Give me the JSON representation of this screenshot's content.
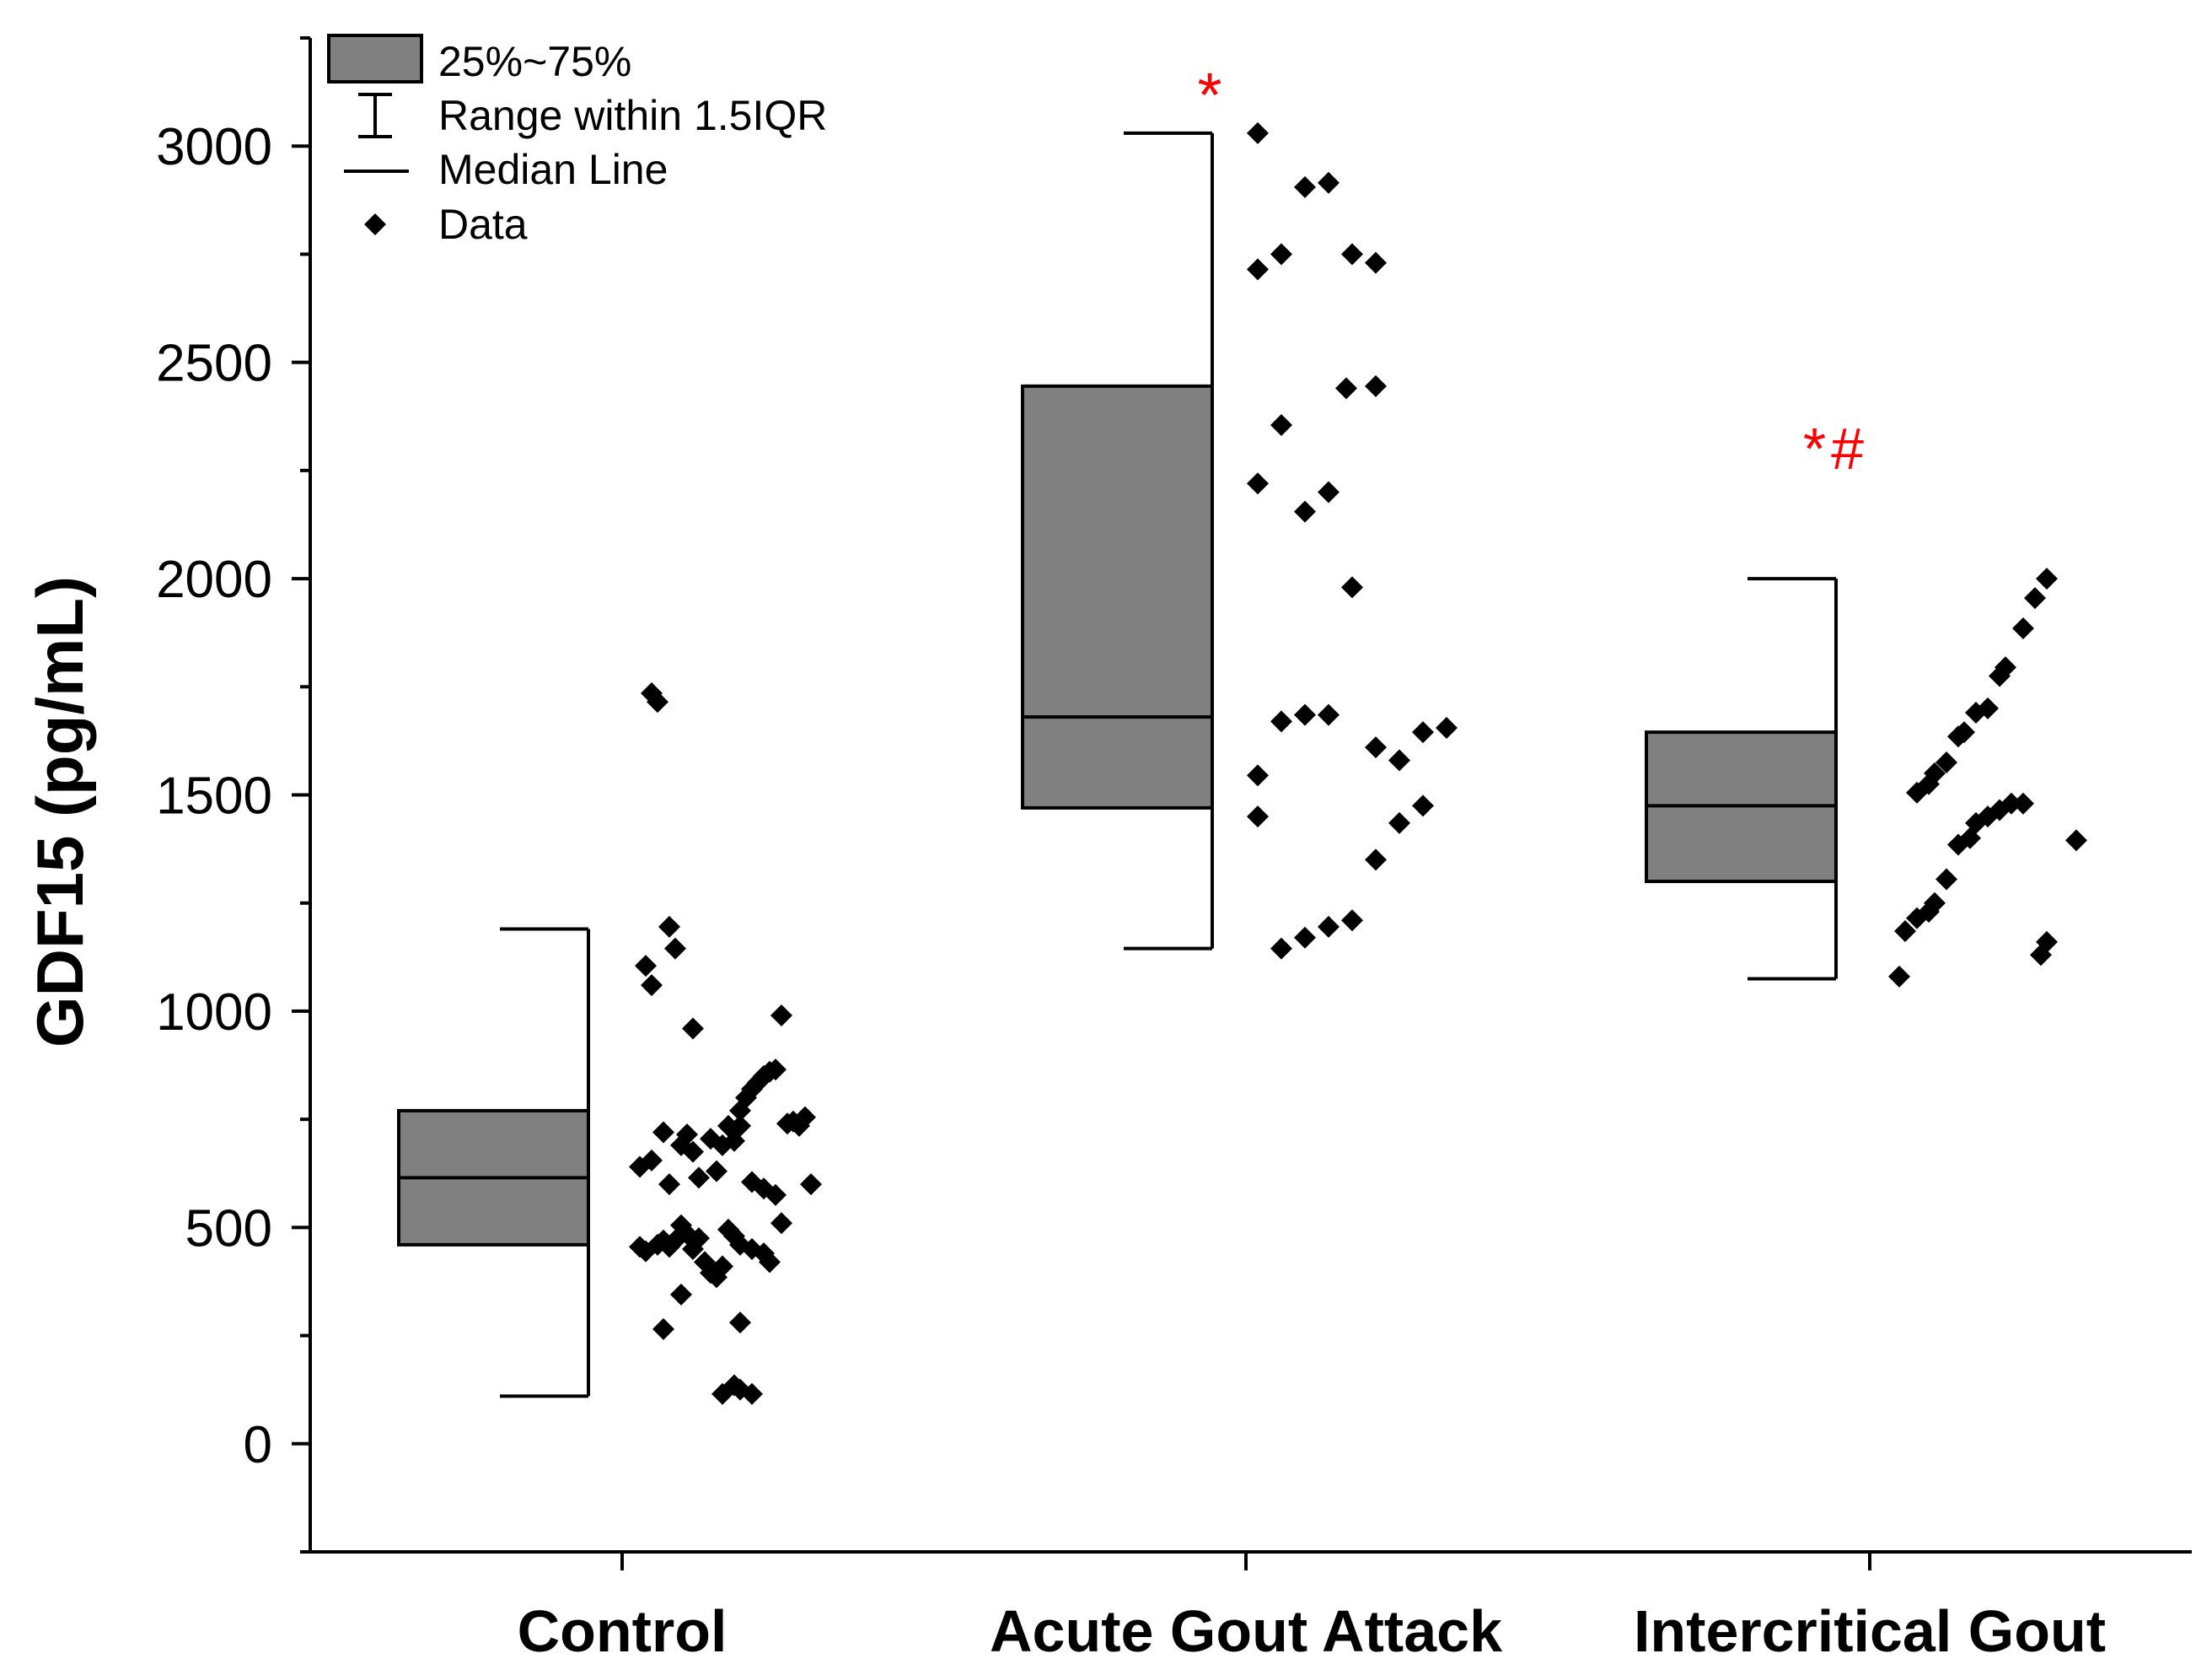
{
  "chart_data": {
    "type": "box",
    "title": "",
    "xlabel": "",
    "ylabel": "GDF15 (pg/mL)",
    "ylim": [
      -250,
      3250
    ],
    "yticks": [
      0,
      500,
      1000,
      1500,
      2000,
      2500,
      3000
    ],
    "categories": [
      "Control",
      "Acute Gout Attack",
      "Intercritical Gout"
    ],
    "legend": {
      "position": "top-left",
      "entries": [
        {
          "key": "box",
          "label": "25%~75%"
        },
        {
          "key": "whisker",
          "label": "Range within 1.5IQR"
        },
        {
          "key": "median",
          "label": "Median Line"
        },
        {
          "key": "data",
          "label": "Data"
        }
      ]
    },
    "box_color": "#808080",
    "annotation_color": "#ff0000",
    "groups": [
      {
        "name": "Control",
        "q1": 460,
        "median": 615,
        "q3": 770,
        "whisker_low": 110,
        "whisker_high": 1190,
        "annotation": "",
        "points": [
          [
            0.05,
            1735
          ],
          [
            0.06,
            1715
          ],
          [
            0.08,
            1195
          ],
          [
            0.09,
            1145
          ],
          [
            0.04,
            1105
          ],
          [
            0.05,
            1060
          ],
          [
            0.12,
            960
          ],
          [
            0.27,
            990
          ],
          [
            0.03,
            640
          ],
          [
            0.05,
            655
          ],
          [
            0.07,
            720
          ],
          [
            0.08,
            600
          ],
          [
            0.1,
            690
          ],
          [
            0.11,
            715
          ],
          [
            0.12,
            675
          ],
          [
            0.13,
            615
          ],
          [
            0.15,
            705
          ],
          [
            0.16,
            630
          ],
          [
            0.17,
            690
          ],
          [
            0.18,
            735
          ],
          [
            0.19,
            700
          ],
          [
            0.2,
            770
          ],
          [
            0.21,
            800
          ],
          [
            0.22,
            820
          ],
          [
            0.23,
            835
          ],
          [
            0.24,
            850
          ],
          [
            0.25,
            860
          ],
          [
            0.26,
            865
          ],
          [
            0.2,
            735
          ],
          [
            0.22,
            605
          ],
          [
            0.24,
            590
          ],
          [
            0.26,
            575
          ],
          [
            0.28,
            740
          ],
          [
            0.29,
            745
          ],
          [
            0.3,
            735
          ],
          [
            0.31,
            755
          ],
          [
            0.32,
            600
          ],
          [
            0.03,
            455
          ],
          [
            0.04,
            445
          ],
          [
            0.06,
            460
          ],
          [
            0.07,
            470
          ],
          [
            0.08,
            455
          ],
          [
            0.09,
            470
          ],
          [
            0.1,
            505
          ],
          [
            0.11,
            485
          ],
          [
            0.12,
            450
          ],
          [
            0.13,
            475
          ],
          [
            0.14,
            420
          ],
          [
            0.15,
            395
          ],
          [
            0.16,
            385
          ],
          [
            0.17,
            410
          ],
          [
            0.18,
            495
          ],
          [
            0.19,
            480
          ],
          [
            0.2,
            460
          ],
          [
            0.22,
            450
          ],
          [
            0.24,
            440
          ],
          [
            0.25,
            420
          ],
          [
            0.27,
            510
          ],
          [
            0.1,
            345
          ],
          [
            0.07,
            265
          ],
          [
            0.2,
            280
          ],
          [
            0.17,
            115
          ],
          [
            0.19,
            135
          ],
          [
            0.2,
            125
          ],
          [
            0.22,
            115
          ]
        ]
      },
      {
        "name": "Acute Gout Attack",
        "q1": 1470,
        "median": 1680,
        "q3": 2445,
        "whisker_low": 1145,
        "whisker_high": 3030,
        "annotation": "*",
        "points": [
          [
            0.02,
            3030
          ],
          [
            0.1,
            2905
          ],
          [
            0.14,
            2915
          ],
          [
            0.02,
            2715
          ],
          [
            0.06,
            2750
          ],
          [
            0.18,
            2750
          ],
          [
            0.22,
            2730
          ],
          [
            0.17,
            2440
          ],
          [
            0.22,
            2445
          ],
          [
            0.06,
            2355
          ],
          [
            0.02,
            2220
          ],
          [
            0.14,
            2200
          ],
          [
            0.1,
            2155
          ],
          [
            0.18,
            1980
          ],
          [
            0.06,
            1670
          ],
          [
            0.1,
            1685
          ],
          [
            0.14,
            1685
          ],
          [
            0.02,
            1545
          ],
          [
            0.22,
            1610
          ],
          [
            0.26,
            1580
          ],
          [
            0.3,
            1645
          ],
          [
            0.34,
            1655
          ],
          [
            0.02,
            1450
          ],
          [
            0.26,
            1435
          ],
          [
            0.3,
            1475
          ],
          [
            0.22,
            1350
          ],
          [
            0.06,
            1145
          ],
          [
            0.1,
            1170
          ],
          [
            0.14,
            1195
          ],
          [
            0.18,
            1210
          ]
        ]
      },
      {
        "name": "Intercritical Gout",
        "q1": 1300,
        "median": 1475,
        "q3": 1645,
        "whisker_low": 1075,
        "whisker_high": 2000,
        "annotation": "*#",
        "points": [
          [
            0.3,
            2000
          ],
          [
            0.28,
            1955
          ],
          [
            0.26,
            1885
          ],
          [
            0.23,
            1795
          ],
          [
            0.22,
            1775
          ],
          [
            0.2,
            1700
          ],
          [
            0.18,
            1690
          ],
          [
            0.16,
            1645
          ],
          [
            0.15,
            1635
          ],
          [
            0.13,
            1575
          ],
          [
            0.11,
            1550
          ],
          [
            0.1,
            1525
          ],
          [
            0.08,
            1505
          ],
          [
            0.26,
            1480
          ],
          [
            0.24,
            1480
          ],
          [
            0.22,
            1465
          ],
          [
            0.2,
            1450
          ],
          [
            0.18,
            1435
          ],
          [
            0.17,
            1400
          ],
          [
            0.15,
            1385
          ],
          [
            0.13,
            1305
          ],
          [
            0.11,
            1250
          ],
          [
            0.1,
            1230
          ],
          [
            0.08,
            1215
          ],
          [
            0.06,
            1185
          ],
          [
            0.05,
            1080
          ],
          [
            0.35,
            1395
          ],
          [
            0.3,
            1160
          ],
          [
            0.29,
            1130
          ]
        ]
      }
    ]
  }
}
